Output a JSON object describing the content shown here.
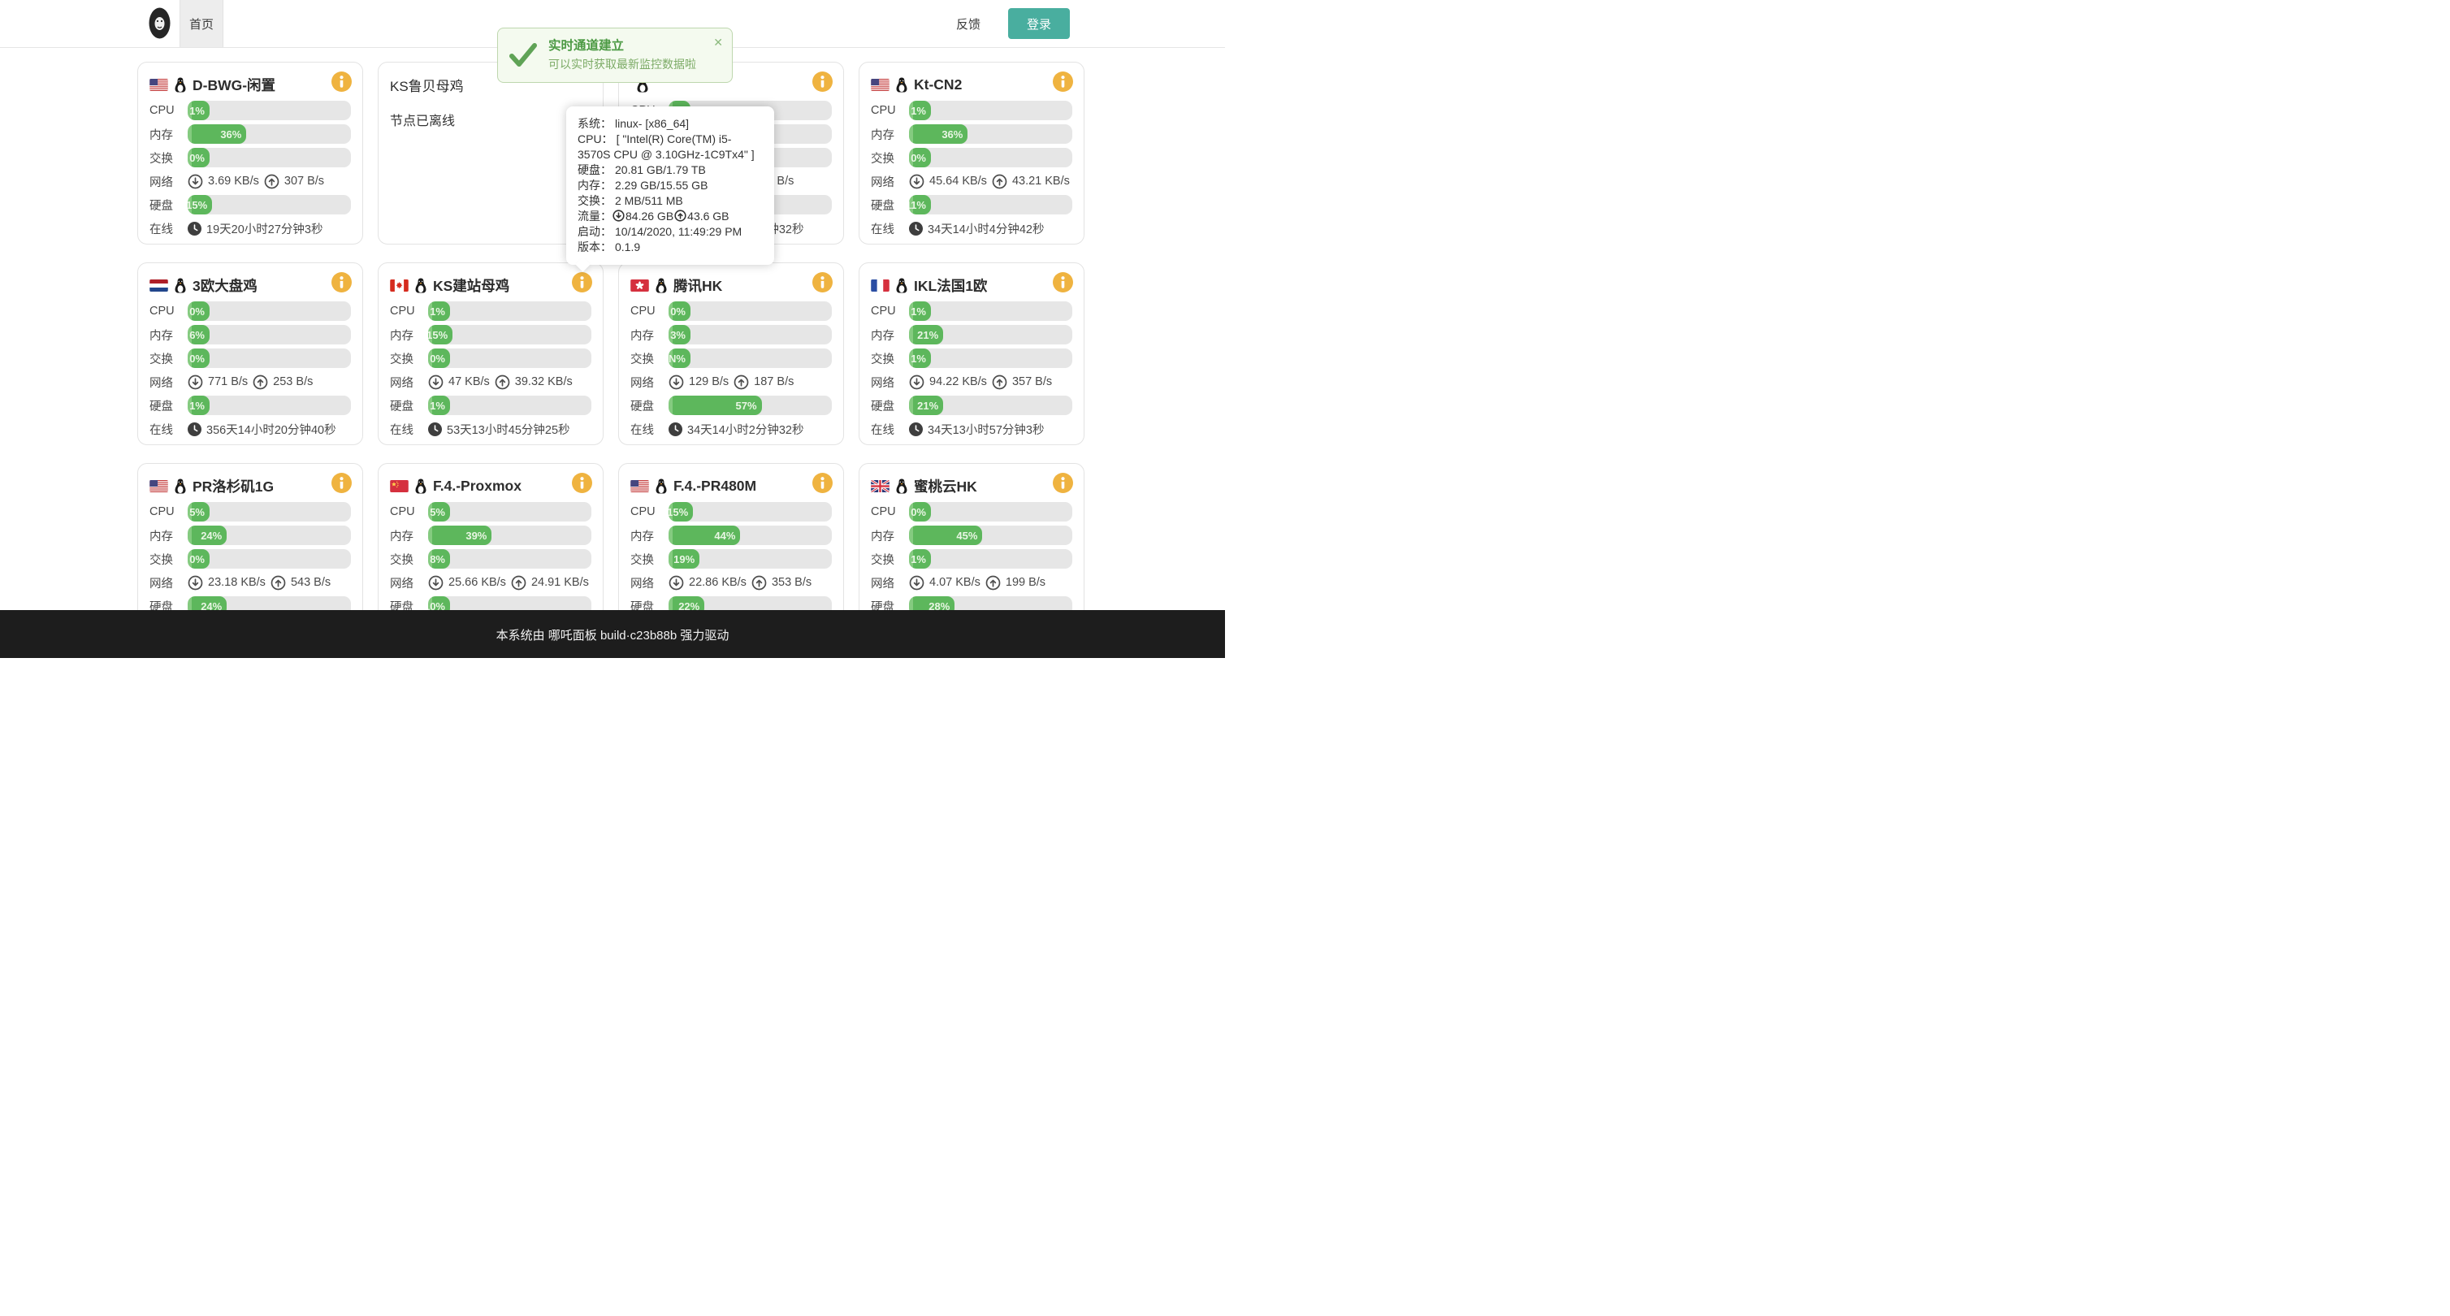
{
  "header": {
    "home_tab": "首页",
    "feedback_link": "反馈",
    "login_button": "登录"
  },
  "toast": {
    "title": "实时通道建立",
    "message": "可以实时获取最新监控数据啦",
    "close_icon": "✕"
  },
  "tooltip": {
    "lines": [
      {
        "label": "系统：",
        "value": "linux- [x86_64]"
      },
      {
        "label": "CPU：",
        "value": "[ \"Intel(R) Core(TM) i5-3570S CPU @ 3.10GHz-1C9Tx4\" ]"
      },
      {
        "label": "硬盘：",
        "value": "20.81 GB/1.79 TB"
      },
      {
        "label": "内存：",
        "value": "2.29 GB/15.55 GB"
      },
      {
        "label": "交换：",
        "value": "2 MB/511 MB"
      }
    ],
    "traffic_label": "流量：",
    "traffic_down": "84.26 GB",
    "traffic_up": "43.6 GB",
    "lines_after": [
      {
        "label": "启动：",
        "value": "10/14/2020, 11:49:29 PM"
      },
      {
        "label": "版本：",
        "value": "0.1.9"
      }
    ]
  },
  "row_labels": {
    "cpu": "CPU",
    "mem": "内存",
    "swap": "交换",
    "net": "网络",
    "disk": "硬盘",
    "online": "在线"
  },
  "servers": [
    {
      "name": "D-BWG-闲置",
      "flag": "us",
      "cpu": {
        "pct": 1,
        "label": "1%"
      },
      "mem": {
        "pct": 36,
        "label": "36%"
      },
      "swap": {
        "pct": 0,
        "label": "0%"
      },
      "net": {
        "down": "3.69 KB/s",
        "up": "307 B/s"
      },
      "disk": {
        "pct": 15,
        "label": "15%"
      },
      "uptime": "19天20小时27分钟3秒"
    },
    {
      "name": "KS鲁贝母鸡",
      "offline": true,
      "message": "节点已离线"
    },
    {
      "name": "",
      "flag": "none",
      "cpu": {
        "pct": 0,
        "label": "0%"
      },
      "mem": {
        "pct": 3,
        "label": "3%"
      },
      "swap": {
        "pct": 0,
        "label": "0%"
      },
      "net": {
        "down": "129 B/s",
        "up": "353 B/s"
      },
      "disk": {
        "pct": 15,
        "label": "15%"
      },
      "uptime": "34天14小时2分钟32秒"
    },
    {
      "name": "Kt-CN2",
      "flag": "us",
      "cpu": {
        "pct": 1,
        "label": "1%"
      },
      "mem": {
        "pct": 36,
        "label": "36%"
      },
      "swap": {
        "pct": 0,
        "label": "0%"
      },
      "net": {
        "down": "45.64 KB/s",
        "up": "43.21 KB/s"
      },
      "disk": {
        "pct": 11,
        "label": "11%"
      },
      "uptime": "34天14小时4分钟42秒"
    },
    {
      "name": "3欧大盘鸡",
      "flag": "nl",
      "cpu": {
        "pct": 0,
        "label": "0%"
      },
      "mem": {
        "pct": 6,
        "label": "6%"
      },
      "swap": {
        "pct": 0,
        "label": "0%"
      },
      "net": {
        "down": "771 B/s",
        "up": "253 B/s"
      },
      "disk": {
        "pct": 1,
        "label": "1%"
      },
      "uptime": "356天14小时20分钟40秒"
    },
    {
      "name": "KS建站母鸡",
      "flag": "ca",
      "cpu": {
        "pct": 1,
        "label": "1%"
      },
      "mem": {
        "pct": 15,
        "label": "15%"
      },
      "swap": {
        "pct": 0,
        "label": "0%"
      },
      "net": {
        "down": "47 KB/s",
        "up": "39.32 KB/s"
      },
      "disk": {
        "pct": 1,
        "label": "1%"
      },
      "uptime": "53天13小时45分钟25秒"
    },
    {
      "name": "腾讯HK",
      "flag": "hk",
      "cpu": {
        "pct": 0,
        "label": "0%"
      },
      "mem": {
        "pct": 3,
        "label": "3%"
      },
      "swap": {
        "pct": 0,
        "label": "NaN%"
      },
      "net": {
        "down": "129 B/s",
        "up": "187 B/s"
      },
      "disk": {
        "pct": 57,
        "label": "57%"
      },
      "uptime": "34天14小时2分钟32秒"
    },
    {
      "name": "IKL法国1欧",
      "flag": "fr",
      "cpu": {
        "pct": 1,
        "label": "1%"
      },
      "mem": {
        "pct": 21,
        "label": "21%"
      },
      "swap": {
        "pct": 1,
        "label": "1%"
      },
      "net": {
        "down": "94.22 KB/s",
        "up": "357 B/s"
      },
      "disk": {
        "pct": 21,
        "label": "21%"
      },
      "uptime": "34天13小时57分钟3秒"
    },
    {
      "name": "PR洛杉矶1G",
      "flag": "us",
      "cpu": {
        "pct": 5,
        "label": "5%"
      },
      "mem": {
        "pct": 24,
        "label": "24%"
      },
      "swap": {
        "pct": 0,
        "label": "0%"
      },
      "net": {
        "down": "23.18 KB/s",
        "up": "543 B/s"
      },
      "disk": {
        "pct": 24,
        "label": "24%"
      },
      "uptime": ""
    },
    {
      "name": "F.4.-Proxmox",
      "flag": "cn",
      "cpu": {
        "pct": 5,
        "label": "5%"
      },
      "mem": {
        "pct": 39,
        "label": "39%"
      },
      "swap": {
        "pct": 8,
        "label": "8%"
      },
      "net": {
        "down": "25.66 KB/s",
        "up": "24.91 KB/s"
      },
      "disk": {
        "pct": 10,
        "label": "10%"
      },
      "uptime": ""
    },
    {
      "name": "F.4.-PR480M",
      "flag": "us",
      "cpu": {
        "pct": 15,
        "label": "15%"
      },
      "mem": {
        "pct": 44,
        "label": "44%"
      },
      "swap": {
        "pct": 19,
        "label": "19%"
      },
      "net": {
        "down": "22.86 KB/s",
        "up": "353 B/s"
      },
      "disk": {
        "pct": 22,
        "label": "22%"
      },
      "uptime": ""
    },
    {
      "name": "蜜桃云HK",
      "flag": "gb",
      "cpu": {
        "pct": 0,
        "label": "0%"
      },
      "mem": {
        "pct": 45,
        "label": "45%"
      },
      "swap": {
        "pct": 1,
        "label": "1%"
      },
      "net": {
        "down": "4.07 KB/s",
        "up": "199 B/s"
      },
      "disk": {
        "pct": 28,
        "label": "28%"
      },
      "uptime": ""
    }
  ],
  "footer": {
    "text": "本系统由 哪吒面板 build·c23b88b 强力驱动"
  },
  "colors": {
    "bar_green": "#5db75c",
    "bar_track": "#e6e6e6",
    "info_icon": "#efb340",
    "login_teal": "#49ae9f",
    "toast_bg": "#f4faef",
    "toast_green": "#4c9a44",
    "footer_bg": "#1d1d1d"
  }
}
